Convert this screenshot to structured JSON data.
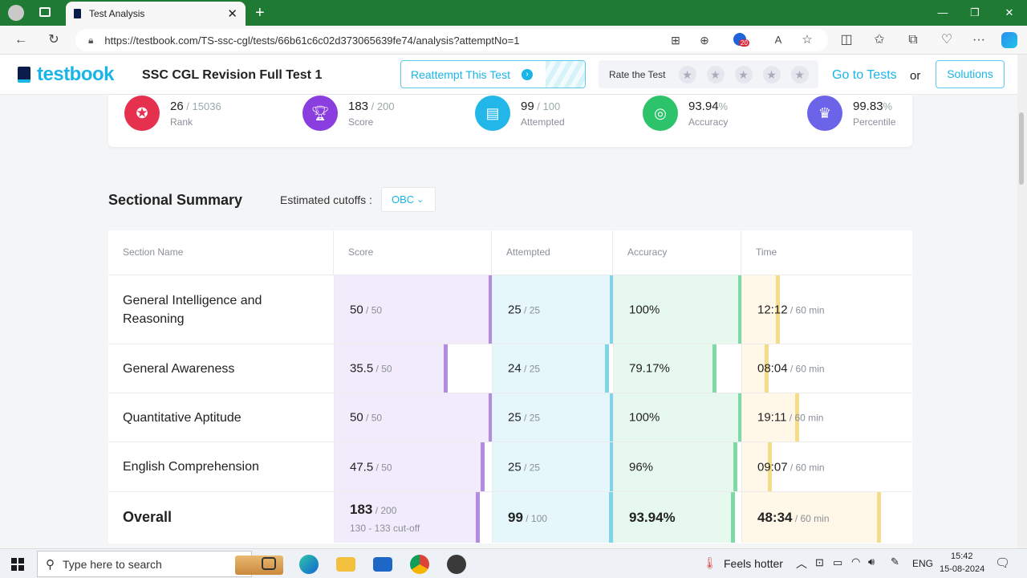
{
  "browser": {
    "tab_title": "Test Analysis",
    "url": "https://testbook.com/TS-ssc-cgl/tests/66b61c6c02d373065639fe74/analysis?attemptNo=1",
    "badge_count": "20"
  },
  "header": {
    "logo": "testbook",
    "test_name": "SSC CGL Revision Full Test 1",
    "reattempt_label": "Reattempt This Test",
    "rate_label": "Rate the Test",
    "go_to_tests": "Go to Tests",
    "or": "or",
    "solutions": "Solutions"
  },
  "stats": [
    {
      "value": "26",
      "total": " / 15036",
      "label": "Rank",
      "color": "#e5304e"
    },
    {
      "value": "183",
      "total": " / 200",
      "label": "Score",
      "color": "#8a3ee0"
    },
    {
      "value": "99",
      "total": " / 100",
      "label": "Attempted",
      "color": "#22b7e8"
    },
    {
      "value": "93.94",
      "total": "%",
      "label": "Accuracy",
      "color": "#2cc36b"
    },
    {
      "value": "99.83",
      "total": "%",
      "label": "Percentile",
      "color": "#6b63e8"
    }
  ],
  "summary": {
    "title": "Sectional Summary",
    "cutoff_label": "Estimated cutoffs :",
    "cutoff_value": "OBC"
  },
  "table": {
    "headers": [
      "Section Name",
      "Score",
      "Attempted",
      "Accuracy",
      "Time"
    ],
    "rows": [
      {
        "name": "General Intelligence and Reasoning",
        "score": "50",
        "score_total": " / 50",
        "score_frac": 1.0,
        "att": "25",
        "att_total": " / 25",
        "att_frac": 1.0,
        "acc": "100%",
        "acc_frac": 1.0,
        "time": "12:12",
        "time_total": " / 60 min",
        "time_frac": 0.2033
      },
      {
        "name": "General Awareness",
        "score": "35.5",
        "score_total": " / 50",
        "score_frac": 0.71,
        "att": "24",
        "att_total": " / 25",
        "att_frac": 0.96,
        "acc": "79.17%",
        "acc_frac": 0.7917,
        "time": "08:04",
        "time_total": " / 60 min",
        "time_frac": 0.1344
      },
      {
        "name": "Quantitative Aptitude",
        "score": "50",
        "score_total": " / 50",
        "score_frac": 1.0,
        "att": "25",
        "att_total": " / 25",
        "att_frac": 1.0,
        "acc": "100%",
        "acc_frac": 1.0,
        "time": "19:11",
        "time_total": " / 60 min",
        "time_frac": 0.3197
      },
      {
        "name": "English Comprehension",
        "score": "47.5",
        "score_total": " / 50",
        "score_frac": 0.95,
        "att": "25",
        "att_total": " / 25",
        "att_frac": 1.0,
        "acc": "96%",
        "acc_frac": 0.96,
        "time": "09:07",
        "time_total": " / 60 min",
        "time_frac": 0.152
      }
    ],
    "overall": {
      "name": "Overall",
      "score": "183",
      "score_total": " / 200",
      "cutoff": "130 - 133 cut-off",
      "score_frac": 0.915,
      "att": "99",
      "att_total": " / 100",
      "att_frac": 0.99,
      "acc": "93.94%",
      "acc_frac": 0.9394,
      "time": "48:34",
      "time_total": " / 60 min",
      "time_frac": 0.8094
    }
  },
  "taskbar": {
    "search_placeholder": "Type here to search",
    "weather": "Feels hotter",
    "lang": "ENG",
    "time": "15:42",
    "date": "15-08-2024"
  },
  "colors": {
    "score_fill": "#f1ebfb",
    "score_marker": "#b38be3",
    "att_fill": "#e6f7fb",
    "att_marker": "#7fd6ea",
    "acc_fill": "#e7f8ee",
    "acc_marker": "#7fd9a4",
    "time_fill": "#fff8e8",
    "time_marker": "#f3dc8a",
    "accent": "#1ab5e6"
  }
}
